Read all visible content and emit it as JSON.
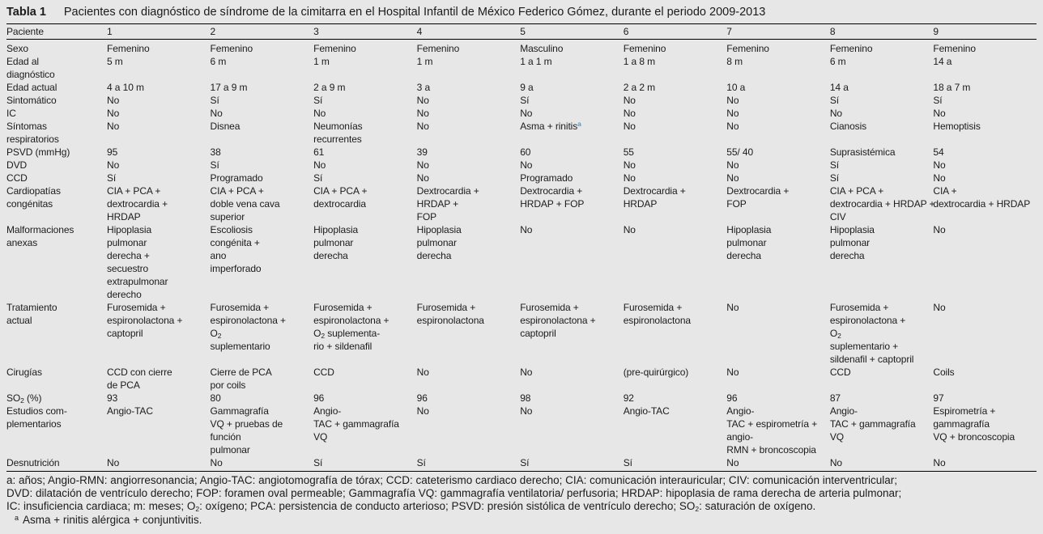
{
  "title": {
    "label": "Tabla 1",
    "caption": "Pacientes con diagnóstico de síndrome de la cimitarra en el Hospital Infantil de México Federico Gómez, durante el periodo 2009-2013"
  },
  "colors": {
    "background": "#e7e7e7",
    "text": "#1b1b1b",
    "rule": "#000000",
    "footnote_ref_blue": "#2b7bb9"
  },
  "table": {
    "header": [
      "Paciente",
      "1",
      "2",
      "3",
      "4",
      "5",
      "6",
      "7",
      "8",
      "9"
    ],
    "rows": [
      {
        "label": "Sexo",
        "cells": [
          "Femenino",
          "Femenino",
          "Femenino",
          "Femenino",
          "Masculino",
          "Femenino",
          "Femenino",
          "Femenino",
          "Femenino"
        ]
      },
      {
        "label": "Edad al\ndiagnóstico",
        "cells": [
          "5 m",
          "6 m",
          "1 m",
          "1 m",
          "1 a 1 m",
          "1 a 8 m",
          "8 m",
          "6 m",
          "14 a"
        ]
      },
      {
        "label": "Edad actual",
        "cells": [
          "4 a 10 m",
          "17 a 9 m",
          "2 a 9 m",
          "3 a",
          "9 a",
          "2 a 2 m",
          "10 a",
          "14 a",
          "18 a 7 m"
        ]
      },
      {
        "label": "Sintomático",
        "cells": [
          "No",
          "Sí",
          "Sí",
          "No",
          "Sí",
          "No",
          "No",
          "Sí",
          "Sí"
        ]
      },
      {
        "label": "IC",
        "cells": [
          "No",
          "No",
          "No",
          "No",
          "No",
          "No",
          "No",
          "No",
          "No"
        ]
      },
      {
        "label": "Síntomas\nrespiratorios",
        "cells": [
          "No",
          "Disnea",
          "Neumonías\nrecurrentes",
          "No",
          "Asma + rinitis^{a}",
          "No",
          "No",
          "Cianosis",
          "Hemoptisis"
        ]
      },
      {
        "label": "PSVD (mmHg)",
        "cells": [
          "95",
          "38",
          "61",
          "39",
          "60",
          "55",
          "55/ 40",
          "Suprasistémica",
          "54"
        ]
      },
      {
        "label": "DVD",
        "cells": [
          "No",
          "Sí",
          "No",
          "No",
          "No",
          "No",
          "No",
          "Sí",
          "No"
        ]
      },
      {
        "label": "CCD",
        "cells": [
          "Sí",
          "Programado",
          "Sí",
          "No",
          "Programado",
          "No",
          "No",
          "Sí",
          "No"
        ]
      },
      {
        "label": "Cardiopatías\ncongénitas",
        "cells": [
          "CIA + PCA +\ndextrocardia +\nHRDAP",
          "CIA + PCA +\ndoble vena cava\nsuperior",
          "CIA + PCA +\ndextrocardia",
          "Dextrocardia +\nHRDAP +\nFOP",
          "Dextrocardia +\nHRDAP + FOP",
          "Dextrocardia +\nHRDAP",
          "Dextrocardia +\nFOP",
          "CIA + PCA +\ndextrocardia + HRDAP +\nCIV",
          "CIA +\ndextrocardia + HRDAP"
        ]
      },
      {
        "label": "Malformaciones\nanexas",
        "cells": [
          "Hipoplasia\npulmonar\nderecha +\nsecuestro\nextrapulmonar\nderecho",
          "Escoliosis\ncongénita +\nano\nimperforado",
          "Hipoplasia\npulmonar\nderecha",
          "Hipoplasia\npulmonar\nderecha",
          "No",
          "No",
          "Hipoplasia\npulmonar\nderecha",
          "Hipoplasia\npulmonar\nderecha",
          "No"
        ]
      },
      {
        "label": "Tratamiento\nactual",
        "cells": [
          "Furosemida +\nespironolactona +\ncaptopril",
          "Furosemida +\nespironolactona +\nO_{2}\nsuplementario",
          "Furosemida +\nespironolactona +\nO_{2} suplementa-\nrio + sildenafil",
          "Furosemida +\nespironolactona",
          "Furosemida +\nespironolactona +\ncaptopril",
          "Furosemida +\nespironolactona",
          "No",
          "Furosemida +\nespironolactona +\nO_{2}\nsuplementario +\nsildenafil + captopril",
          "No"
        ]
      },
      {
        "label": "Cirugías",
        "cells": [
          "CCD con cierre\nde PCA",
          "Cierre de PCA\npor coils",
          "CCD",
          "No",
          "No",
          "(pre-quirúrgico)",
          "No",
          "CCD",
          "Coils"
        ]
      },
      {
        "label": "SO_{2} (%)",
        "cells": [
          "93",
          "80",
          "96",
          "96",
          "98",
          "92",
          "96",
          "87",
          "97"
        ]
      },
      {
        "label": "Estudios com-\nplementarios",
        "cells": [
          "Angio-TAC",
          "Gammagrafía\nVQ + pruebas de\nfunción\npulmonar",
          "Angio-\nTAC + gammagrafía\nVQ",
          "No",
          "No",
          "Angio-TAC",
          "Angio-\nTAC + espirometría +\nangio-\nRMN + broncoscopia",
          "Angio-\nTAC + gammagrafía\nVQ",
          "Espirometría +\ngammagrafía\nVQ + broncoscopia"
        ]
      },
      {
        "label": "Desnutrición",
        "cells": [
          "No",
          "No",
          "Sí",
          "Sí",
          "Sí",
          "Sí",
          "No",
          "No",
          "No"
        ]
      }
    ]
  },
  "footnotes": {
    "abbreviation_lines": [
      "a: años; Angio-RMN: angiorresonancia; Angio-TAC: angiotomografía de tórax; CCD: cateterismo cardiaco derecho; CIA: comunicación interauricular; CIV: comunicación interventricular;",
      "DVD: dilatación de ventrículo derecho; FOP: foramen oval permeable; Gammagrafía VQ: gammagrafía ventilatoria/ perfusoria; HRDAP: hipoplasia de rama derecha de arteria pulmonar;",
      "IC: insuficiencia cardiaca; m: meses; O_{2}: oxígeno; PCA: persistencia de conducto arterioso; PSVD: presión sistólica de ventrículo derecho; SO_{2}: saturación de oxígeno."
    ],
    "note_a": {
      "marker": "a",
      "text": "Asma + rinitis alérgica + conjuntivitis."
    }
  }
}
